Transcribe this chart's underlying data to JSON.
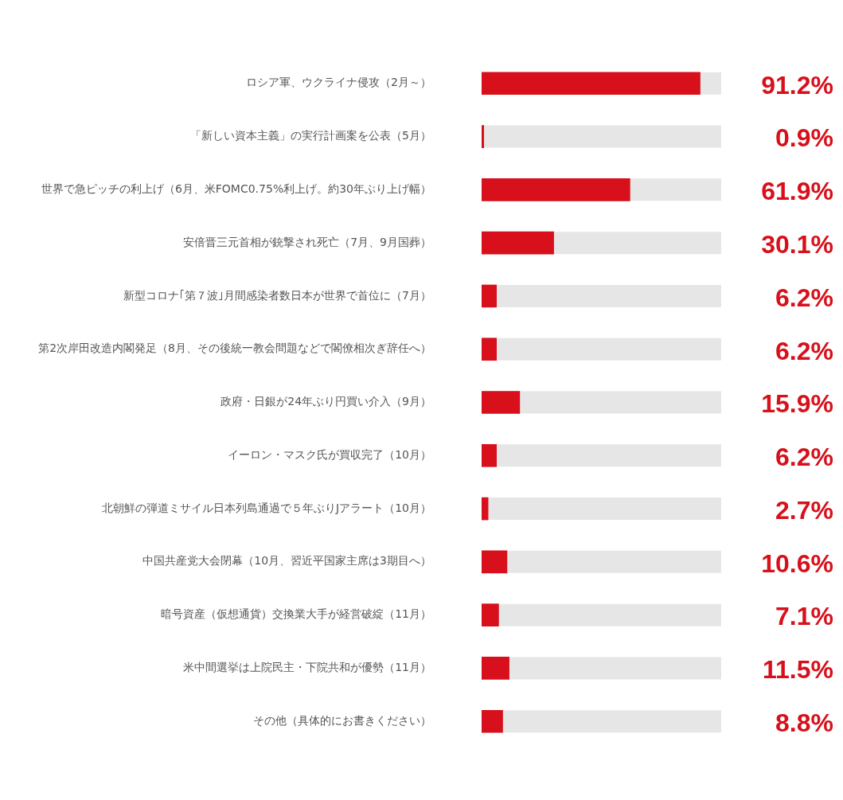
{
  "chart_data": {
    "type": "bar",
    "orientation": "horizontal",
    "categories": [
      "ロシア軍、ウクライナ侵攻（2月～）",
      "「新しい資本主義」の実行計画案を公表（5月）",
      "世界で急ピッチの利上げ（6月、米FOMC0.75%利上げ。約30年ぶり上げ幅）",
      "安倍晋三元首相が銃撃され死亡（7月、9月国葬）",
      "新型コロナ｢第７波｣月間感染者数日本が世界で首位に（7月）",
      "第2次岸田改造内閣発足（8月、その後統一教会問題などで閣僚相次ぎ辞任へ）",
      "政府・日銀が24年ぶり円買い介入（9月）",
      "イーロン・マスク氏が買収完了（10月）",
      "北朝鮮の弾道ミサイル日本列島通過で５年ぶりJアラート（10月）",
      "中国共産党大会閉幕（10月、習近平国家主席は3期目へ）",
      "暗号資産（仮想通貨）交換業大手が経営破綻（11月）",
      "米中間選挙は上院民主・下院共和が優勢（11月）",
      "その他（具体的にお書きください）"
    ],
    "values": [
      91.2,
      0.9,
      61.9,
      30.1,
      6.2,
      6.2,
      15.9,
      6.2,
      2.7,
      10.6,
      7.1,
      11.5,
      8.8
    ],
    "value_labels": [
      "91.2%",
      "0.9%",
      "61.9%",
      "30.1%",
      "6.2%",
      "6.2%",
      "15.9%",
      "6.2%",
      "2.7%",
      "10.6%",
      "7.1%",
      "11.5%",
      "8.8%"
    ],
    "color": "#d7101b",
    "xlim": [
      0,
      100
    ],
    "tick_labels": "y",
    "legend": false
  }
}
